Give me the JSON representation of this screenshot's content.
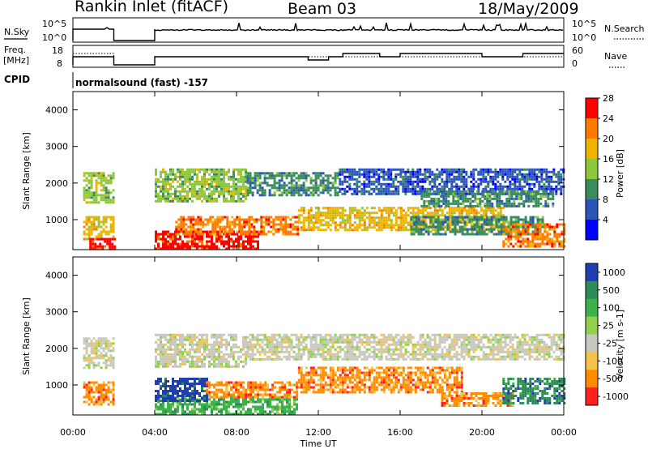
{
  "header": {
    "station": "Rankin Inlet (fitACF)",
    "beam": "Beam 03",
    "date": "18/May/2009"
  },
  "panels_text": {
    "nsky_label": "N.Sky",
    "nsearch_label": "N.Search",
    "freq_label_1": "Freq.",
    "freq_label_2": "[MHz]",
    "nave_label": "Nave",
    "cpid_label": "CPID",
    "cpid_value": "normalsound (fast) -157",
    "nsky_ticks": [
      "10^5",
      "10^0"
    ],
    "nsearch_ticks": [
      "10^5",
      "10^0"
    ],
    "freq_ticks": [
      "18",
      "8"
    ],
    "nave_ticks": [
      "60",
      "0"
    ]
  },
  "chart_data": [
    {
      "type": "heatmap",
      "name": "power",
      "ylabel": "Slant Range [km]",
      "xlabel": "",
      "y_ticks": [
        "1000",
        "2000",
        "3000",
        "4000"
      ],
      "ylim": [
        180,
        4500
      ],
      "colorbar_label": "Power [dB]",
      "colorbar_ticks": [
        "4",
        "8",
        "12",
        "16",
        "20",
        "24",
        "28"
      ],
      "colorbar_colors": [
        "#0000ff",
        "#2b55b8",
        "#3a8d5a",
        "#8cc83c",
        "#f0b400",
        "#ff7a00",
        "#ff0000"
      ],
      "bands": [
        {
          "t": [
            0.5,
            2.0
          ],
          "r": [
            1450,
            2300
          ],
          "level": 3
        },
        {
          "t": [
            0.5,
            2.0
          ],
          "r": [
            500,
            1100
          ],
          "level": 4
        },
        {
          "t": [
            0.8,
            2.0
          ],
          "r": [
            180,
            500
          ],
          "level": 6
        },
        {
          "t": [
            4.0,
            9.0
          ],
          "r": [
            180,
            700
          ],
          "level": 6
        },
        {
          "t": [
            5.0,
            11.0
          ],
          "r": [
            600,
            1100
          ],
          "level": 5
        },
        {
          "t": [
            4.0,
            8.5
          ],
          "r": [
            1500,
            2400
          ],
          "level": 3
        },
        {
          "t": [
            8.5,
            13.0
          ],
          "r": [
            1700,
            2300
          ],
          "level": 2
        },
        {
          "t": [
            13.0,
            24.0
          ],
          "r": [
            1700,
            2400
          ],
          "level": 1
        },
        {
          "t": [
            11.0,
            21.0
          ],
          "r": [
            750,
            1350
          ],
          "level": 4
        },
        {
          "t": [
            16.5,
            23.0
          ],
          "r": [
            600,
            1100
          ],
          "level": 2
        },
        {
          "t": [
            21.0,
            24.0
          ],
          "r": [
            300,
            900
          ],
          "level": 5
        },
        {
          "t": [
            17.0,
            23.5
          ],
          "r": [
            1400,
            1800
          ],
          "level": 2
        }
      ]
    },
    {
      "type": "heatmap",
      "name": "velocity",
      "ylabel": "Slant Range [km]",
      "xlabel": "Time UT",
      "x_ticks": [
        "00:00",
        "04:00",
        "08:00",
        "12:00",
        "16:00",
        "20:00",
        "00:00"
      ],
      "y_ticks": [
        "1000",
        "2000",
        "3000",
        "4000"
      ],
      "ylim": [
        180,
        4500
      ],
      "xlim": [
        0,
        24
      ],
      "colorbar_label": "Velocity [m s-1]",
      "colorbar_ticks": [
        "1000",
        "500",
        "100",
        "25",
        "-25",
        "-100",
        "-500",
        "-1000"
      ],
      "colorbar_colors": [
        "#1f3faf",
        "#2e8b57",
        "#3cb34a",
        "#90d04a",
        "#c8c8c0",
        "#f5c24a",
        "#ff8c00",
        "#ff2020"
      ],
      "bands": [
        {
          "t": [
            0.5,
            2.0
          ],
          "r": [
            1450,
            2300
          ],
          "level": 4
        },
        {
          "t": [
            0.5,
            2.0
          ],
          "r": [
            500,
            1100
          ],
          "level": 6
        },
        {
          "t": [
            4.0,
            11.0
          ],
          "r": [
            180,
            700
          ],
          "level": 2
        },
        {
          "t": [
            4.0,
            6.5
          ],
          "r": [
            600,
            1200
          ],
          "level": 0
        },
        {
          "t": [
            6.5,
            11.0
          ],
          "r": [
            700,
            1100
          ],
          "level": 6
        },
        {
          "t": [
            4.0,
            8.5
          ],
          "r": [
            1500,
            2400
          ],
          "level": 4
        },
        {
          "t": [
            8.5,
            24.0
          ],
          "r": [
            1700,
            2400
          ],
          "level": 4
        },
        {
          "t": [
            11.0,
            19.0
          ],
          "r": [
            800,
            1500
          ],
          "level": 6
        },
        {
          "t": [
            18.0,
            21.5
          ],
          "r": [
            450,
            800
          ],
          "level": 6
        },
        {
          "t": [
            21.0,
            24.0
          ],
          "r": [
            500,
            1200
          ],
          "level": 1
        }
      ]
    }
  ]
}
